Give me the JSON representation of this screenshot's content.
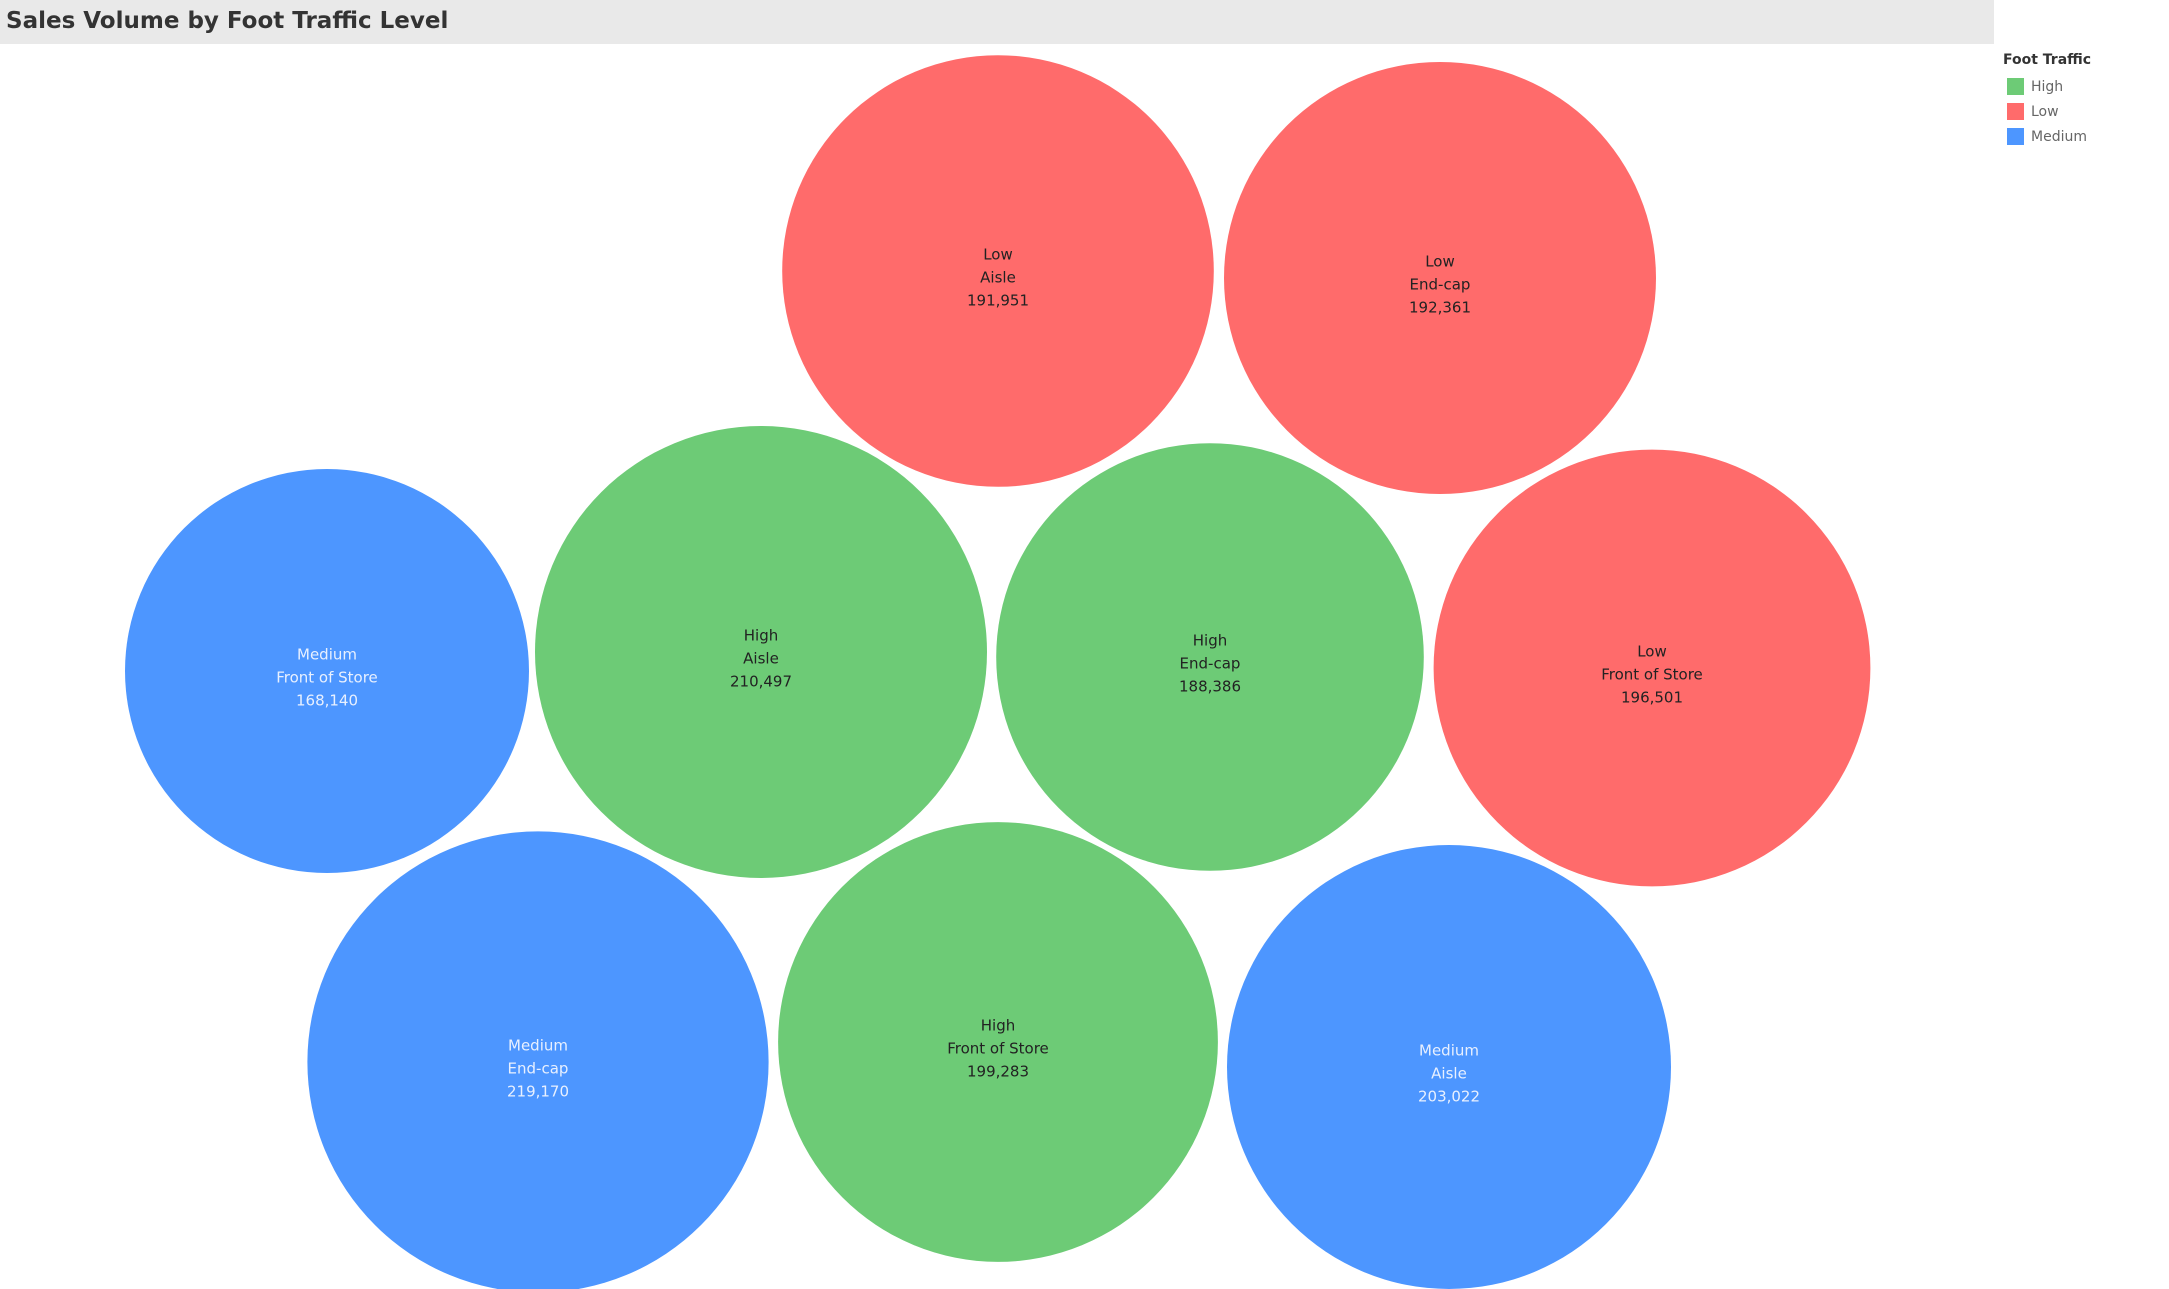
{
  "title": "Sales Volume by Foot Traffic Level",
  "legend": {
    "title": "Foot Traffic",
    "items": [
      {
        "label": "High",
        "color": "#6dcb76"
      },
      {
        "label": "Low",
        "color": "#ff6b6b"
      },
      {
        "label": "Medium",
        "color": "#4d96ff"
      }
    ]
  },
  "chart_data": {
    "type": "packed-bubble",
    "title": "Sales Volume by Foot Traffic Level",
    "color_by": "Foot Traffic",
    "size_by": "Sales Volume",
    "text_color": {
      "High": "#222222",
      "Low": "#222222",
      "Medium": "#e8f0ff"
    },
    "bubbles": [
      {
        "foot_traffic": "Low",
        "placement": "Aisle",
        "value": 191951,
        "value_label": "191,951"
      },
      {
        "foot_traffic": "Low",
        "placement": "End-cap",
        "value": 192361,
        "value_label": "192,361"
      },
      {
        "foot_traffic": "Medium",
        "placement": "Front of Store",
        "value": 168140,
        "value_label": "168,140"
      },
      {
        "foot_traffic": "High",
        "placement": "Aisle",
        "value": 210497,
        "value_label": "210,497"
      },
      {
        "foot_traffic": "High",
        "placement": "End-cap",
        "value": 188386,
        "value_label": "188,386"
      },
      {
        "foot_traffic": "Low",
        "placement": "Front of Store",
        "value": 196501,
        "value_label": "196,501"
      },
      {
        "foot_traffic": "Medium",
        "placement": "End-cap",
        "value": 219170,
        "value_label": "219,170"
      },
      {
        "foot_traffic": "High",
        "placement": "Front of Store",
        "value": 199283,
        "value_label": "199,283"
      },
      {
        "foot_traffic": "Medium",
        "placement": "Aisle",
        "value": 203022,
        "value_label": "203,022"
      }
    ]
  }
}
